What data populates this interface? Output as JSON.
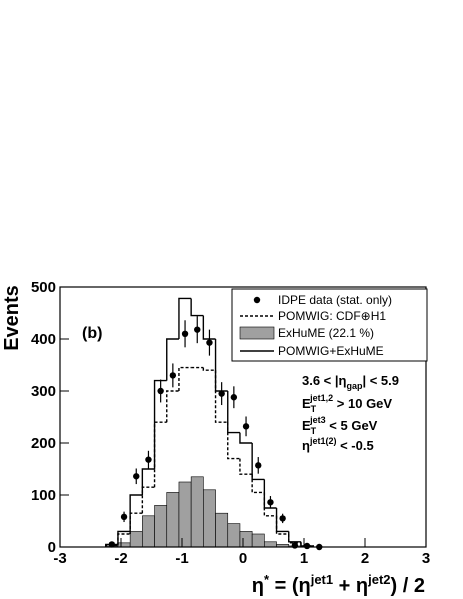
{
  "chart_data": {
    "type": "histogram",
    "ylabel": "Events",
    "xlabel": [
      "η",
      "*",
      " = (η",
      "jet1",
      " + η",
      "jet2",
      ") / 2"
    ],
    "panel_label": "(b)",
    "annotations": [
      [
        "3.6 < |η",
        "gap",
        "| < 5.9"
      ],
      [
        "E",
        "T",
        "jet1,2",
        " > 10 GeV"
      ],
      [
        "E",
        "T",
        "jet3",
        " < 5 GeV"
      ],
      [
        "η",
        "jet1(2)",
        " < -0.5"
      ]
    ],
    "xlim": [
      -3,
      3
    ],
    "xticks": [
      -3,
      -2,
      -1,
      0,
      1,
      2,
      3
    ],
    "ylim": [
      0,
      500
    ],
    "yticks": [
      0,
      100,
      200,
      300,
      400,
      500
    ],
    "bins": [
      -2.25,
      -2.05,
      -1.85,
      -1.65,
      -1.45,
      -1.25,
      -1.05,
      -0.85,
      -0.65,
      -0.45,
      -0.25,
      -0.05,
      0.15,
      0.35,
      0.55,
      0.75,
      0.95,
      1.15
    ],
    "series": [
      {
        "name": "POMWIG: CDF⊕H1",
        "color": "#000000",
        "style": "dashed",
        "values": [
          3,
          25,
          65,
          115,
          240,
          300,
          345,
          345,
          340,
          240,
          170,
          140,
          105,
          60,
          25,
          8,
          2
        ]
      },
      {
        "name": "ExHuME (22.1 %)",
        "color": "#a0a0a0",
        "style": "filled",
        "values": [
          2,
          8,
          30,
          60,
          80,
          105,
          125,
          135,
          110,
          65,
          45,
          30,
          25,
          10,
          5,
          2,
          0
        ]
      },
      {
        "name": "POMWIG+ExHuME",
        "color": "#000000",
        "style": "solid",
        "values": [
          5,
          30,
          100,
          150,
          320,
          400,
          478,
          445,
          400,
          300,
          220,
          200,
          130,
          75,
          30,
          10,
          2
        ]
      }
    ],
    "data": {
      "name": "IDPE data (stat. only)",
      "color": "#000000",
      "x": [
        -2.15,
        -1.95,
        -1.75,
        -1.55,
        -1.35,
        -1.15,
        -0.95,
        -0.75,
        -0.55,
        -0.35,
        -0.15,
        0.05,
        0.25,
        0.45,
        0.65,
        0.85,
        1.05,
        1.25
      ],
      "values": [
        5,
        58,
        136,
        168,
        300,
        330,
        410,
        418,
        393,
        295,
        288,
        232,
        157,
        86,
        55,
        3,
        2,
        0
      ],
      "errors": [
        3,
        10,
        15,
        17,
        22,
        23,
        26,
        26,
        25,
        22,
        21,
        19,
        16,
        12,
        9,
        2,
        2,
        1
      ]
    }
  }
}
